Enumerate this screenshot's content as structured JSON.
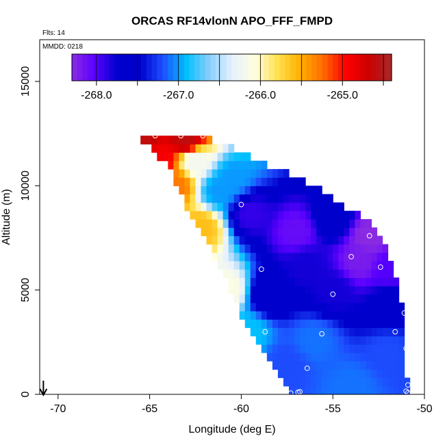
{
  "chart_data": {
    "type": "heatmap",
    "title": "ORCAS RF14vlonN APO_FFF_FMPD",
    "annotations": {
      "flights": "Flts: 14",
      "mmdd": "MMDD: 0218"
    },
    "xlabel": "Longitude (deg E)",
    "ylabel": "Altitude (m)",
    "xlim": [
      -71,
      -50
    ],
    "ylim": [
      0,
      17000
    ],
    "x_ticks": [
      -70,
      -65,
      -60,
      -55,
      -50
    ],
    "y_ticks": [
      0,
      5000,
      10000,
      15000
    ],
    "x_tick_labels": [
      "-70",
      "-65",
      "-60",
      "-55",
      "-50"
    ],
    "y_tick_labels": [
      "0",
      "5000",
      "10000",
      "15000"
    ],
    "colorbar": {
      "range": [
        -268.3,
        -264.4
      ],
      "ticks": [
        -268.0,
        -267.0,
        -266.0,
        -265.0
      ],
      "tick_labels": [
        "-268.0",
        "-267.0",
        "-266.0",
        "-265.0"
      ],
      "colors": [
        "#8a2be2",
        "#5a00ff",
        "#0000cd",
        "#0000cd",
        "#1e50ff",
        "#00bfff",
        "#87cefa",
        "#e6f0ff",
        "#ffffe0",
        "#ffe050",
        "#ffb000",
        "#ff6a00",
        "#ff0000",
        "#cc0000",
        "#a52a2a"
      ]
    },
    "field": {
      "lon_range": [
        -65.8,
        -50.9
      ],
      "alt_range": [
        0,
        12400
      ],
      "left_edge": [
        [
          0,
          -57.4
        ],
        [
          3000,
          -59.6
        ],
        [
          6000,
          -61.1
        ],
        [
          9000,
          -63.0
        ],
        [
          11000,
          -64.0
        ],
        [
          12400,
          -65.8
        ]
      ],
      "right_edge": [
        [
          0,
          -50.9
        ],
        [
          4000,
          -51.2
        ],
        [
          6000,
          -51.6
        ],
        [
          8000,
          -52.6
        ],
        [
          10000,
          -56.0
        ],
        [
          12400,
          -62.0
        ]
      ],
      "control_points": [
        {
          "lon": -65.5,
          "alt": 12300,
          "value": -264.6
        },
        {
          "lon": -63.0,
          "alt": 12200,
          "value": -264.6
        },
        {
          "lon": -64.5,
          "alt": 11200,
          "value": -264.9
        },
        {
          "lon": -63.6,
          "alt": 10000,
          "value": -265.3
        },
        {
          "lon": -62.2,
          "alt": 8000,
          "value": -265.6
        },
        {
          "lon": -60.8,
          "alt": 5000,
          "value": -266.1
        },
        {
          "lon": -59.6,
          "alt": 3000,
          "value": -266.9
        },
        {
          "lon": -62.5,
          "alt": 11200,
          "value": -266.2
        },
        {
          "lon": -61.2,
          "alt": 9800,
          "value": -267.0
        },
        {
          "lon": -60.5,
          "alt": 10400,
          "value": -267.0
        },
        {
          "lon": -59.5,
          "alt": 8700,
          "value": -267.9
        },
        {
          "lon": -57.0,
          "alt": 7800,
          "value": -268.1
        },
        {
          "lon": -55.0,
          "alt": 8400,
          "value": -267.6
        },
        {
          "lon": -53.0,
          "alt": 7600,
          "value": -268.3
        },
        {
          "lon": -53.5,
          "alt": 6400,
          "value": -268.2
        },
        {
          "lon": -56.5,
          "alt": 6200,
          "value": -267.8
        },
        {
          "lon": -52.0,
          "alt": 6000,
          "value": -268.0
        },
        {
          "lon": -55.0,
          "alt": 5000,
          "value": -267.8
        },
        {
          "lon": -52.0,
          "alt": 4400,
          "value": -267.7
        },
        {
          "lon": -58.5,
          "alt": 4800,
          "value": -267.7
        },
        {
          "lon": -56.0,
          "alt": 2600,
          "value": -267.1
        },
        {
          "lon": -52.0,
          "alt": 2000,
          "value": -267.2
        },
        {
          "lon": -54.0,
          "alt": 400,
          "value": -267.1
        },
        {
          "lon": -57.5,
          "alt": 1500,
          "value": -267.2
        }
      ]
    },
    "sample_points": [
      {
        "lon": -65.8,
        "alt": 12400
      },
      {
        "lon": -64.7,
        "alt": 12400
      },
      {
        "lon": -63.3,
        "alt": 12400
      },
      {
        "lon": -62.1,
        "alt": 12400
      },
      {
        "lon": -60.0,
        "alt": 9100
      },
      {
        "lon": -53.0,
        "alt": 7600
      },
      {
        "lon": -54.0,
        "alt": 6600
      },
      {
        "lon": -52.4,
        "alt": 6100
      },
      {
        "lon": -51.2,
        "alt": 5900
      },
      {
        "lon": -58.9,
        "alt": 6000
      },
      {
        "lon": -55.0,
        "alt": 4800
      },
      {
        "lon": -51.1,
        "alt": 3900
      },
      {
        "lon": -51.6,
        "alt": 3000
      },
      {
        "lon": -58.7,
        "alt": 3000
      },
      {
        "lon": -55.6,
        "alt": 2900
      },
      {
        "lon": -51.0,
        "alt": 2200
      },
      {
        "lon": -56.4,
        "alt": 1250
      },
      {
        "lon": -50.9,
        "alt": 450
      },
      {
        "lon": -57.3,
        "alt": 60
      },
      {
        "lon": -56.9,
        "alt": 100
      },
      {
        "lon": -56.8,
        "alt": 120
      },
      {
        "lon": -50.9,
        "alt": 80
      },
      {
        "lon": -51.0,
        "alt": 150
      }
    ],
    "arrow": {
      "lon": -70.8,
      "direction": "down"
    },
    "grid": false,
    "legend": "colorbar top"
  }
}
